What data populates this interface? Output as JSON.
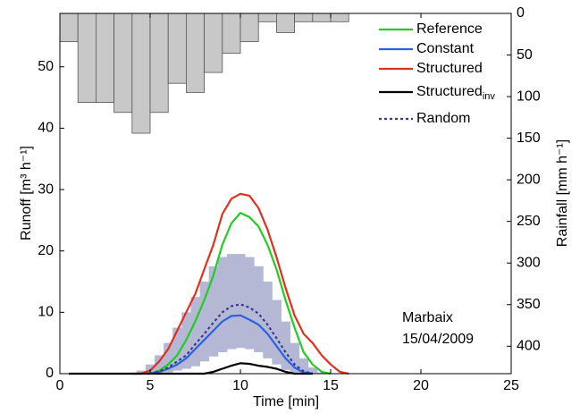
{
  "chart_data": {
    "type": "line",
    "x_label": "Time [min]",
    "y_label": "Runoff [m³ h⁻¹]",
    "y2_label": "Rainfall [mm h⁻¹]",
    "annotations": [
      "Marbaix",
      "15/04/2009"
    ],
    "xlim": [
      0,
      25
    ],
    "xticks": [
      0,
      5,
      10,
      15,
      20,
      25
    ],
    "ylim": [
      0,
      58.7
    ],
    "yticks": [
      0,
      10,
      20,
      30,
      40,
      50
    ],
    "y2lim": [
      433,
      0
    ],
    "y2ticks": [
      0,
      50,
      100,
      150,
      200,
      250,
      300,
      350,
      400
    ],
    "legend": "upper right",
    "x": [
      0,
      0.5,
      1,
      1.5,
      2,
      2.5,
      3,
      3.5,
      4,
      4.5,
      5,
      5.5,
      6,
      6.5,
      7,
      7.5,
      8,
      8.5,
      9,
      9.5,
      10,
      10.5,
      11,
      11.5,
      12,
      12.5,
      13,
      13.5,
      14,
      14.5,
      15,
      15.5,
      16
    ],
    "rainfall": {
      "type": "bar",
      "axis": "y2",
      "color": "#c8c8c8",
      "bins": [
        0,
        1,
        2,
        3,
        4,
        5,
        6,
        7,
        8,
        9,
        10,
        11,
        12,
        13,
        14,
        15,
        16
      ],
      "values": [
        34,
        107,
        107,
        119,
        144,
        119,
        84,
        95,
        71,
        48,
        34,
        10,
        23,
        10,
        10,
        10
      ]
    },
    "envelope": {
      "color": "#b4b8d4",
      "upper": [
        null,
        null,
        null,
        null,
        null,
        null,
        null,
        null,
        0,
        0.5,
        1.5,
        3,
        5,
        7.5,
        10,
        12.5,
        15,
        17.5,
        19,
        19.5,
        19.5,
        19,
        17.5,
        15,
        12,
        8.5,
        5,
        2.5,
        1,
        0.2,
        0,
        null,
        null
      ],
      "lower": [
        null,
        null,
        null,
        null,
        null,
        null,
        null,
        null,
        0,
        0,
        0,
        0,
        0.2,
        0.5,
        0.8,
        1.2,
        2,
        2.8,
        3.5,
        4,
        4.2,
        4,
        3.5,
        2.5,
        1.5,
        0.6,
        0.2,
        0,
        0,
        0,
        0,
        null,
        null
      ]
    },
    "series": [
      {
        "name": "Reference",
        "color": "#22cc22",
        "dash": false,
        "values": [
          null,
          null,
          null,
          null,
          null,
          null,
          null,
          null,
          null,
          null,
          0,
          0.5,
          1.5,
          3,
          5.5,
          8.5,
          12,
          16,
          21,
          24.5,
          26.2,
          25.5,
          24,
          21,
          17,
          12,
          7.5,
          3.5,
          1.5,
          0.3,
          0,
          null,
          null
        ]
      },
      {
        "name": "Constant",
        "color": "#2a62e0",
        "dash": false,
        "values": [
          null,
          null,
          null,
          null,
          null,
          null,
          null,
          null,
          null,
          null,
          0,
          0.3,
          0.8,
          1.5,
          2.5,
          4,
          5.5,
          7,
          8.5,
          9.4,
          9.5,
          8.8,
          8,
          6.5,
          4.5,
          2.5,
          1,
          0.2,
          0,
          null,
          null,
          null,
          null
        ]
      },
      {
        "name": "Structured",
        "color": "#e0301e",
        "dash": false,
        "values": [
          null,
          null,
          null,
          null,
          null,
          null,
          null,
          null,
          0,
          0,
          0.5,
          2,
          4,
          7,
          10,
          13,
          17,
          21,
          26,
          28.5,
          29.3,
          29,
          27,
          23.5,
          19,
          14,
          9.5,
          6.5,
          5,
          3,
          1.5,
          0.3,
          0
        ]
      },
      {
        "name": "Structured",
        "name_sub": "inv",
        "color": "#000000",
        "dash": false,
        "values": [
          null,
          0,
          0,
          0,
          0,
          0,
          0,
          0,
          0,
          0,
          0,
          0,
          0,
          0,
          0,
          0,
          0,
          0.3,
          0.8,
          1.3,
          1.7,
          1.6,
          1.3,
          1.1,
          0.8,
          0.3,
          0,
          0,
          0,
          null,
          null,
          null,
          null
        ]
      },
      {
        "name": "Random",
        "color": "#3a3a8c",
        "dash": true,
        "values": [
          null,
          null,
          null,
          null,
          null,
          null,
          null,
          null,
          null,
          null,
          0,
          0.4,
          1,
          2,
          3,
          4.8,
          6.5,
          8.3,
          10,
          11,
          11.3,
          10.8,
          9.8,
          8,
          5.8,
          3.5,
          1.5,
          0.4,
          0,
          null,
          null,
          null,
          null
        ]
      }
    ]
  }
}
